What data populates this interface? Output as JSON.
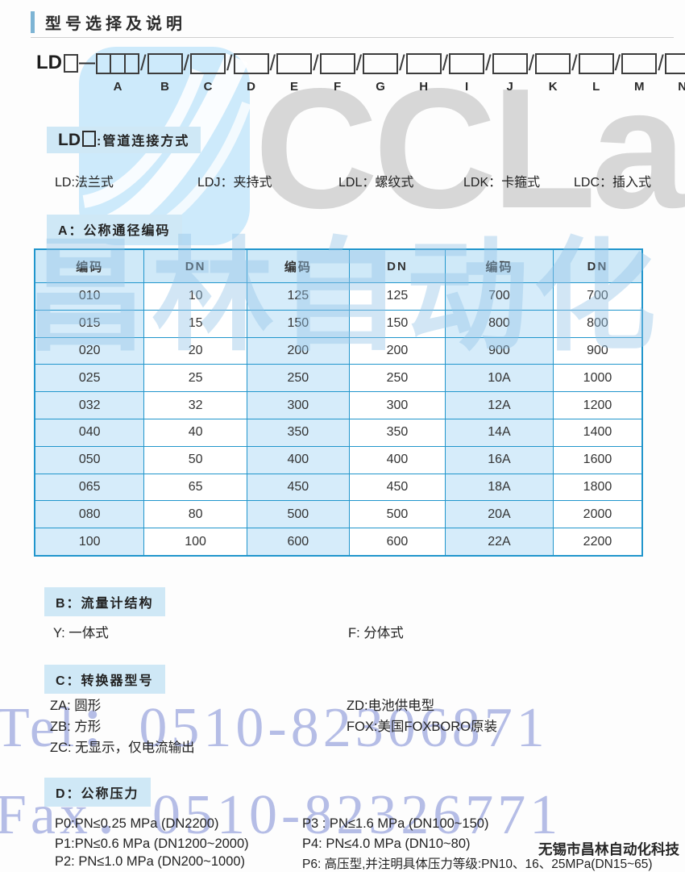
{
  "title": "型号选择及说明",
  "model_code": {
    "prefix": "LD",
    "dash": "—",
    "letters": [
      "A",
      "B",
      "C",
      "D",
      "E",
      "F",
      "G",
      "H",
      "I",
      "J",
      "K",
      "L",
      "M",
      "N"
    ]
  },
  "section_ld": {
    "code": "LD",
    "suffix": ":管道连接方式",
    "options": [
      "LD:法兰式",
      "LDJ：夹持式",
      "LDL：螺纹式",
      "LDK：卡箍式",
      "LDC：插入式"
    ]
  },
  "section_a": {
    "header": "A：公称通径编码",
    "table": {
      "headers": [
        "编码",
        "DN",
        "编码",
        "DN",
        "编码",
        "DN"
      ],
      "rows": [
        [
          "010",
          "10",
          "125",
          "125",
          "700",
          "700"
        ],
        [
          "015",
          "15",
          "150",
          "150",
          "800",
          "800"
        ],
        [
          "020",
          "20",
          "200",
          "200",
          "900",
          "900"
        ],
        [
          "025",
          "25",
          "250",
          "250",
          "10A",
          "1000"
        ],
        [
          "032",
          "32",
          "300",
          "300",
          "12A",
          "1200"
        ],
        [
          "040",
          "40",
          "350",
          "350",
          "14A",
          "1400"
        ],
        [
          "050",
          "50",
          "400",
          "400",
          "16A",
          "1600"
        ],
        [
          "065",
          "65",
          "450",
          "450",
          "18A",
          "1800"
        ],
        [
          "080",
          "80",
          "500",
          "500",
          "20A",
          "2000"
        ],
        [
          "100",
          "100",
          "600",
          "600",
          "22A",
          "2200"
        ]
      ]
    }
  },
  "section_b": {
    "header": "B：流量计结构",
    "left": "Y: 一体式",
    "right": "F: 分体式"
  },
  "section_c": {
    "header": "C：转换器型号",
    "left": [
      "ZA: 圆形",
      "ZB: 方形",
      "ZC: 无显示，仅电流输出"
    ],
    "right": [
      "ZD:电池供电型",
      "FOX:美国FOXBORO原装"
    ]
  },
  "section_d": {
    "header": "D：公称压力",
    "left": [
      "P0:PN≤0.25 MPa (DN2200)",
      "P1:PN≤0.6 MPa (DN1200~2000)",
      "P2: PN≤1.0 MPa (DN200~1000)"
    ],
    "right": [
      "P3 : PN≤1.6 MPa (DN100~150)",
      "P4: PN≤4.0 MPa (DN10~80)",
      "P6: 高压型,并注明具体压力等级:PN10、16、25MPa(DN15~65)"
    ]
  },
  "watermarks": {
    "logo_text": "CCLair",
    "tel": "Tel：0510-82306871",
    "fax": "Fax：0510-82326771",
    "company": "无锡市昌林自动化科技",
    "table_overlay": "昌林自动化"
  },
  "colors": {
    "accent_blue": "#2196cc",
    "badge_bg": "#cfe8f6",
    "code_cell_bg": "#d6ecfa",
    "header_cell_bg": "#cfe9f8",
    "logo_panel": "#cdeafb",
    "watermark_gray": "#d7d7d7",
    "watermark_periwinkle": "#a9b2e2"
  }
}
